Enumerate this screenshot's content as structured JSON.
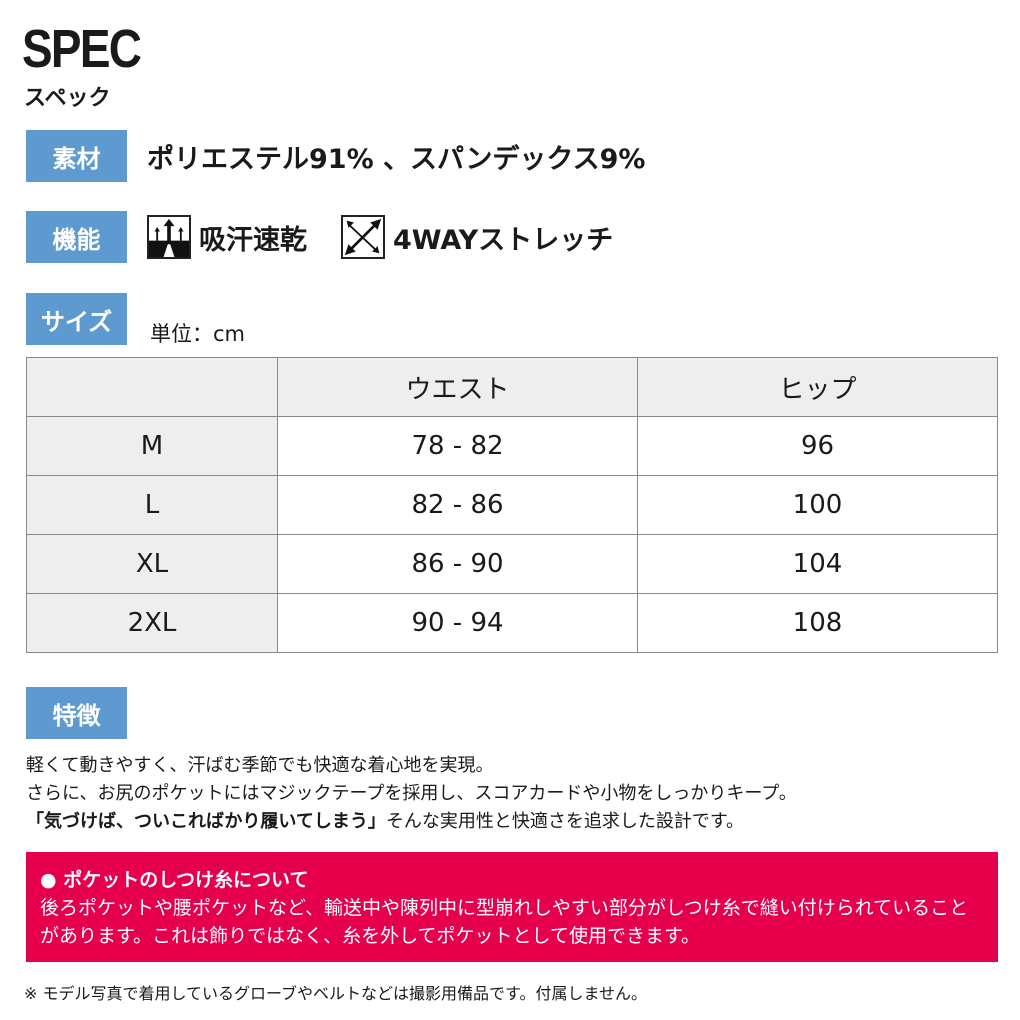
{
  "header": {
    "title": "SPEC",
    "subtitle": "スペック"
  },
  "material": {
    "label": "素材",
    "value": "ポリエステル91% 、スパンデックス9%"
  },
  "function": {
    "label": "機能",
    "items": [
      {
        "icon": "moisture-wicking-icon",
        "text": "吸汗速乾"
      },
      {
        "icon": "4way-stretch-icon",
        "text": "4WAYストレッチ"
      }
    ]
  },
  "size": {
    "label": "サイズ",
    "unit": "単位：cm",
    "table": {
      "headers": [
        "",
        "ウエスト",
        "ヒップ"
      ],
      "rows": [
        [
          "M",
          "78 - 82",
          "96"
        ],
        [
          "L",
          "82 - 86",
          "100"
        ],
        [
          "XL",
          "86 - 90",
          "104"
        ],
        [
          "2XL",
          "90 - 94",
          "108"
        ]
      ]
    }
  },
  "features": {
    "label": "特徴",
    "lines": [
      "軽くて動きやすく、汗ばむ季節でも快適な着心地を実現。",
      "さらに、お尻のポケットにはマジックテープを採用し、スコアカードや小物をしっかりキープ。"
    ],
    "quote": "「気づけば、ついこればかり履いてしまう」",
    "quote_after": "そんな実用性と快適さを追求した設計です。"
  },
  "notice": {
    "title": "● ポケットのしつけ糸について",
    "text": "後ろポケットや腰ポケットなど、輸送中や陳列中に型崩れしやすい部分がしつけ糸で縫い付けられていることがあります。これは飾りではなく、糸を外してポケットとして使用できます。"
  },
  "footnote": "※ モデル写真で着用しているグローブやベルトなどは撮影用備品です。付属しません。",
  "colors": {
    "label_bg": "#5e9ad0",
    "notice_bg": "#e6004c",
    "table_header_bg": "#eeeeee"
  }
}
